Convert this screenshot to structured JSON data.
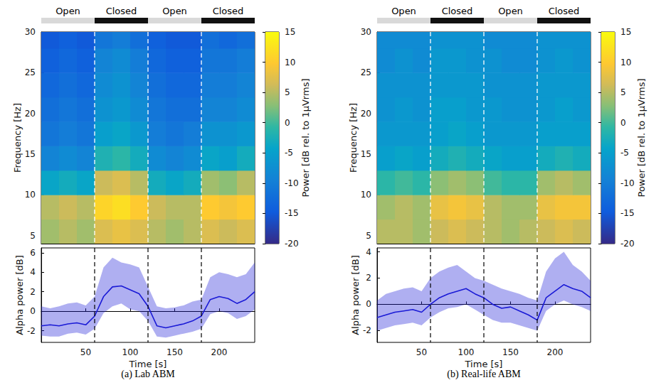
{
  "chart_data": [
    {
      "type": "spectrogram",
      "title": "(a) Lab ABM",
      "conditions": {
        "labels": [
          "Open",
          "Closed",
          "Open",
          "Closed"
        ],
        "starts": [
          0,
          60,
          120,
          180
        ],
        "ends": [
          60,
          120,
          180,
          240
        ],
        "colors": [
          "#d9d9d9",
          "#111111",
          "#d9d9d9",
          "#111111"
        ]
      },
      "event_times": [
        60,
        120,
        180
      ],
      "spectrogram": {
        "xlim": [
          0,
          240
        ],
        "xticks": [
          50,
          100,
          150,
          200
        ],
        "ylim": [
          4,
          30
        ],
        "yticks": [
          5,
          10,
          15,
          20,
          25,
          30
        ],
        "ylabel": "Frequency [Hz]",
        "tick_labels": "y",
        "time_edges": [
          0,
          20,
          40,
          60,
          80,
          100,
          120,
          140,
          160,
          180,
          200,
          220,
          240
        ],
        "freq_edges": [
          4,
          7,
          10,
          13,
          16,
          19,
          22,
          25,
          28,
          30
        ],
        "cells": [
          [
            4,
            5,
            4,
            7,
            8,
            7,
            5,
            4,
            5,
            7,
            6,
            7
          ],
          [
            5,
            6,
            5,
            11,
            12,
            10,
            6,
            5,
            5,
            10,
            9,
            10
          ],
          [
            -4,
            -3,
            -4,
            6,
            7,
            5,
            -3,
            -4,
            -3,
            4,
            3,
            5
          ],
          [
            -9,
            -8,
            -9,
            -2,
            -1,
            -3,
            -8,
            -9,
            -8,
            -4,
            -5,
            -3
          ],
          [
            -11,
            -10,
            -11,
            -5,
            -4,
            -6,
            -10,
            -11,
            -10,
            -7,
            -7,
            -6
          ],
          [
            -12,
            -11,
            -12,
            -7,
            -6,
            -8,
            -11,
            -12,
            -12,
            -9,
            -9,
            -8
          ],
          [
            -13,
            -12,
            -13,
            -8,
            -7,
            -9,
            -12,
            -13,
            -13,
            -10,
            -10,
            -9
          ],
          [
            -14,
            -13,
            -14,
            -9,
            -8,
            -10,
            -13,
            -14,
            -14,
            -11,
            -11,
            -10
          ],
          [
            -15,
            -14,
            -15,
            -11,
            -10,
            -12,
            -14,
            -15,
            -15,
            -12,
            -13,
            -12
          ]
        ],
        "colorbar": {
          "range": [
            -20,
            15
          ],
          "ticks": [
            -20,
            -15,
            -10,
            -5,
            0,
            5,
            10,
            15
          ],
          "label": "Power [dB rel. to 1μVrms]"
        }
      },
      "alpha": {
        "type": "line",
        "color": "#1a1ad6",
        "x": [
          0,
          10,
          20,
          30,
          40,
          50,
          60,
          70,
          80,
          90,
          100,
          110,
          120,
          130,
          140,
          150,
          160,
          170,
          180,
          190,
          200,
          210,
          220,
          230,
          240
        ],
        "values": [
          -1.5,
          -1.4,
          -1.5,
          -1.3,
          -1.2,
          -1.4,
          -0.5,
          1.5,
          2.5,
          2.6,
          2.2,
          1.8,
          0.5,
          -1.5,
          -1.7,
          -1.5,
          -1.3,
          -1.0,
          -0.5,
          1.2,
          1.5,
          1.3,
          0.8,
          1.2,
          2.0
        ],
        "lower": [
          -2.5,
          -2.6,
          -2.6,
          -2.3,
          -2.2,
          -2.4,
          -1.8,
          -0.2,
          0.5,
          0.8,
          0.2,
          0.0,
          -1.0,
          -2.6,
          -2.7,
          -2.5,
          -2.3,
          -2.1,
          -1.8,
          -0.3,
          0.0,
          -0.2,
          -0.8,
          -0.5,
          0.2
        ],
        "upper": [
          0.5,
          0.3,
          0.5,
          0.8,
          0.9,
          0.6,
          1.5,
          4.5,
          5.5,
          5.0,
          4.8,
          4.5,
          2.5,
          0.5,
          0.3,
          0.4,
          0.6,
          1.0,
          1.2,
          3.5,
          4.0,
          3.8,
          3.5,
          3.8,
          5.0
        ],
        "xlim": [
          0,
          240
        ],
        "xticks": [
          50,
          100,
          150,
          200
        ],
        "ylim": [
          -3.2,
          6.5
        ],
        "yticks": [
          -2,
          0,
          2,
          4,
          6
        ],
        "xlabel": "Time [s]",
        "ylabel": "Alpha power [dB]"
      }
    },
    {
      "type": "spectrogram",
      "title": "(b) Real-life ABM",
      "conditions": {
        "labels": [
          "Open",
          "Closed",
          "Open",
          "Closed"
        ],
        "starts": [
          0,
          60,
          120,
          180
        ],
        "ends": [
          60,
          120,
          180,
          240
        ],
        "colors": [
          "#d9d9d9",
          "#111111",
          "#d9d9d9",
          "#111111"
        ]
      },
      "event_times": [
        60,
        120,
        180
      ],
      "spectrogram": {
        "xlim": [
          0,
          240
        ],
        "xticks": [
          50,
          100,
          150,
          200
        ],
        "ylim": [
          4,
          30
        ],
        "yticks": [
          5,
          10,
          15,
          20,
          25,
          30
        ],
        "ylabel": "Frequency [Hz]",
        "tick_labels": "y",
        "time_edges": [
          0,
          20,
          40,
          60,
          80,
          100,
          120,
          140,
          160,
          180,
          200,
          220,
          240
        ],
        "freq_edges": [
          4,
          7,
          10,
          13,
          16,
          19,
          22,
          25,
          28,
          30
        ],
        "cells": [
          [
            5,
            5,
            4,
            6,
            7,
            6,
            5,
            4,
            5,
            6,
            7,
            6
          ],
          [
            4,
            5,
            4,
            8,
            9,
            8,
            5,
            4,
            4,
            8,
            9,
            9
          ],
          [
            -1,
            0,
            -1,
            3,
            4,
            3,
            0,
            -1,
            -1,
            4,
            5,
            4
          ],
          [
            -5,
            -4,
            -5,
            -3,
            -2,
            -3,
            -4,
            -5,
            -5,
            -3,
            -2,
            -3
          ],
          [
            -6,
            -6,
            -6,
            -5,
            -4,
            -5,
            -6,
            -6,
            -6,
            -5,
            -5,
            -5
          ],
          [
            -7,
            -6,
            -7,
            -5,
            -5,
            -6,
            -6,
            -7,
            -7,
            -6,
            -5,
            -6
          ],
          [
            -7,
            -7,
            -7,
            -6,
            -6,
            -6,
            -7,
            -7,
            -7,
            -6,
            -6,
            -6
          ],
          [
            -8,
            -7,
            -8,
            -6,
            -6,
            -7,
            -7,
            -8,
            -8,
            -7,
            -6,
            -7
          ],
          [
            -8,
            -8,
            -8,
            -7,
            -7,
            -7,
            -8,
            -8,
            -8,
            -7,
            -7,
            -7
          ]
        ],
        "colorbar": {
          "range": [
            -20,
            15
          ],
          "ticks": [
            -20,
            -15,
            -10,
            -5,
            0,
            5,
            10,
            15
          ],
          "label": "Power [dB rel. to 1μVrms]"
        }
      },
      "alpha": {
        "type": "line",
        "color": "#1a1ad6",
        "x": [
          0,
          10,
          20,
          30,
          40,
          50,
          60,
          70,
          80,
          90,
          100,
          110,
          120,
          130,
          140,
          150,
          160,
          170,
          180,
          190,
          200,
          210,
          220,
          230,
          240
        ],
        "values": [
          -1.0,
          -0.8,
          -0.6,
          -0.5,
          -0.4,
          -0.6,
          0.0,
          0.5,
          0.8,
          1.0,
          1.2,
          0.8,
          0.5,
          0.0,
          -0.3,
          -0.2,
          -0.5,
          -0.8,
          -1.2,
          0.5,
          1.0,
          1.5,
          1.2,
          1.0,
          0.5
        ],
        "lower": [
          -2.0,
          -1.8,
          -1.6,
          -1.5,
          -1.4,
          -1.6,
          -1.0,
          -0.6,
          -0.3,
          -0.2,
          0.0,
          -0.4,
          -0.8,
          -1.2,
          -1.4,
          -1.4,
          -1.6,
          -1.8,
          -2.0,
          -0.5,
          0.0,
          0.3,
          0.0,
          -0.2,
          -0.5
        ],
        "upper": [
          0.3,
          0.8,
          1.0,
          1.2,
          1.3,
          1.0,
          2.0,
          2.5,
          2.8,
          3.0,
          2.5,
          2.0,
          1.8,
          1.5,
          1.2,
          1.0,
          0.8,
          0.5,
          0.3,
          2.5,
          3.5,
          4.0,
          3.0,
          2.5,
          1.8
        ],
        "xlim": [
          0,
          240
        ],
        "xticks": [
          50,
          100,
          150,
          200
        ],
        "ylim": [
          -2.9,
          4.3
        ],
        "yticks": [
          -2,
          0,
          2,
          4
        ],
        "xlabel": "Time [s]",
        "ylabel": "Alpha power [dB]"
      }
    }
  ]
}
